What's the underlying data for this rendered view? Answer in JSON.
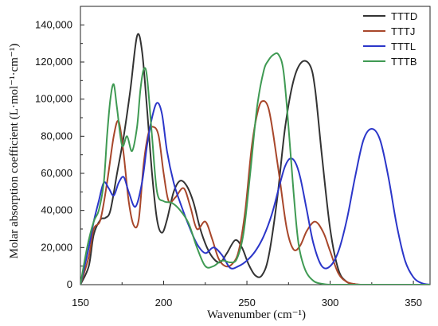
{
  "chart_data": {
    "type": "line",
    "title": "",
    "xlabel": "Wavenumber (cm⁻¹)",
    "ylabel": "Molar absorption coefficient (L·mol⁻¹·cm⁻¹)",
    "xlim": [
      150,
      360
    ],
    "ylim": [
      0,
      150000
    ],
    "x_ticks": [
      150,
      200,
      250,
      300,
      350
    ],
    "x_tick_labels": [
      "150",
      "200",
      "250",
      "300",
      "350"
    ],
    "y_ticks": [
      0,
      20000,
      40000,
      60000,
      80000,
      100000,
      120000,
      140000
    ],
    "y_tick_labels": [
      "0",
      "20,000",
      "40,000",
      "60,000",
      "80,000",
      "100,000",
      "120,000",
      "140,000"
    ],
    "legend_position": "top-right",
    "grid": false,
    "series": [
      {
        "name": "TTTD",
        "color": "#333333",
        "x": [
          150,
          155,
          158,
          162,
          165,
          168,
          172,
          176,
          180,
          184,
          187,
          190,
          193,
          196,
          199,
          202,
          206,
          210,
          214,
          218,
          222,
          226,
          230,
          234,
          238,
          243,
          247,
          251,
          255,
          259,
          263,
          268,
          273,
          278,
          283,
          288,
          291,
          295,
          300,
          305,
          310,
          315,
          320,
          330,
          340,
          350,
          360
        ],
        "y": [
          0,
          10000,
          27000,
          35000,
          36000,
          40000,
          60000,
          80000,
          105000,
          134000,
          126000,
          95000,
          60000,
          35000,
          28000,
          35000,
          50000,
          56000,
          53000,
          44000,
          30000,
          20000,
          14000,
          12000,
          17000,
          24000,
          20000,
          11000,
          5000,
          5000,
          15000,
          45000,
          85000,
          110000,
          120000,
          118000,
          105000,
          70000,
          30000,
          8000,
          1500,
          300,
          0,
          0,
          0,
          0,
          0
        ]
      },
      {
        "name": "TTTJ",
        "color": "#a8472b",
        "x": [
          150,
          155,
          158,
          162,
          166,
          170,
          173,
          176,
          179,
          182,
          185,
          188,
          191,
          194,
          197,
          200,
          203,
          207,
          212,
          216,
          220,
          225,
          229,
          233,
          237,
          241,
          245,
          249,
          253,
          257,
          260,
          263,
          266,
          270,
          274,
          278,
          282,
          286,
          291,
          296,
          300,
          305,
          310,
          315,
          320,
          330,
          360
        ],
        "y": [
          0,
          15000,
          30000,
          35000,
          55000,
          80000,
          88000,
          70000,
          45000,
          32000,
          35000,
          65000,
          82000,
          85000,
          80000,
          60000,
          45000,
          47000,
          52000,
          42000,
          30000,
          34000,
          25000,
          14000,
          10000,
          11000,
          18000,
          40000,
          75000,
          95000,
          99000,
          95000,
          80000,
          55000,
          30000,
          19000,
          21000,
          29000,
          34000,
          28000,
          18000,
          6000,
          1500,
          300,
          0,
          0,
          0
        ]
      },
      {
        "name": "TTTL",
        "color": "#2b36c9",
        "x": [
          150,
          155,
          158,
          161,
          164,
          167,
          170,
          173,
          176,
          179,
          183,
          187,
          190,
          193,
          196,
          199,
          202,
          206,
          210,
          215,
          220,
          225,
          230,
          235,
          240,
          245,
          250,
          255,
          260,
          265,
          270,
          273,
          276,
          279,
          282,
          286,
          290,
          295,
          300,
          305,
          310,
          315,
          320,
          325,
          330,
          335,
          340,
          345,
          350,
          355,
          360
        ],
        "y": [
          0,
          20000,
          34000,
          45000,
          55000,
          52000,
          48000,
          55000,
          58000,
          50000,
          42000,
          55000,
          75000,
          90000,
          98000,
          92000,
          72000,
          55000,
          44000,
          32000,
          22000,
          17000,
          20000,
          16000,
          9000,
          10000,
          13000,
          18000,
          26000,
          38000,
          55000,
          64000,
          68000,
          66000,
          58000,
          40000,
          22000,
          10000,
          10000,
          18000,
          35000,
          58000,
          78000,
          84000,
          78000,
          58000,
          32000,
          13000,
          4000,
          800,
          0
        ]
      },
      {
        "name": "TTTB",
        "color": "#3f9a53",
        "x": [
          150,
          154,
          158,
          161,
          164,
          166,
          168,
          170,
          172,
          175,
          178,
          181,
          184,
          186,
          188,
          190,
          193,
          196,
          200,
          205,
          210,
          215,
          220,
          225,
          230,
          235,
          240,
          244,
          248,
          252,
          256,
          260,
          263,
          266,
          269,
          272,
          275,
          278,
          281,
          285,
          290,
          295,
          300,
          310,
          320,
          360
        ],
        "y": [
          0,
          20000,
          34000,
          40000,
          55000,
          80000,
          100000,
          108000,
          95000,
          75000,
          80000,
          72000,
          85000,
          105000,
          116000,
          112000,
          80000,
          50000,
          45000,
          44000,
          40000,
          33000,
          20000,
          10000,
          10000,
          13000,
          12000,
          14000,
          28000,
          60000,
          95000,
          115000,
          121000,
          124000,
          124000,
          115000,
          85000,
          50000,
          22000,
          8000,
          2000,
          500,
          0,
          0,
          0,
          0
        ]
      }
    ]
  }
}
